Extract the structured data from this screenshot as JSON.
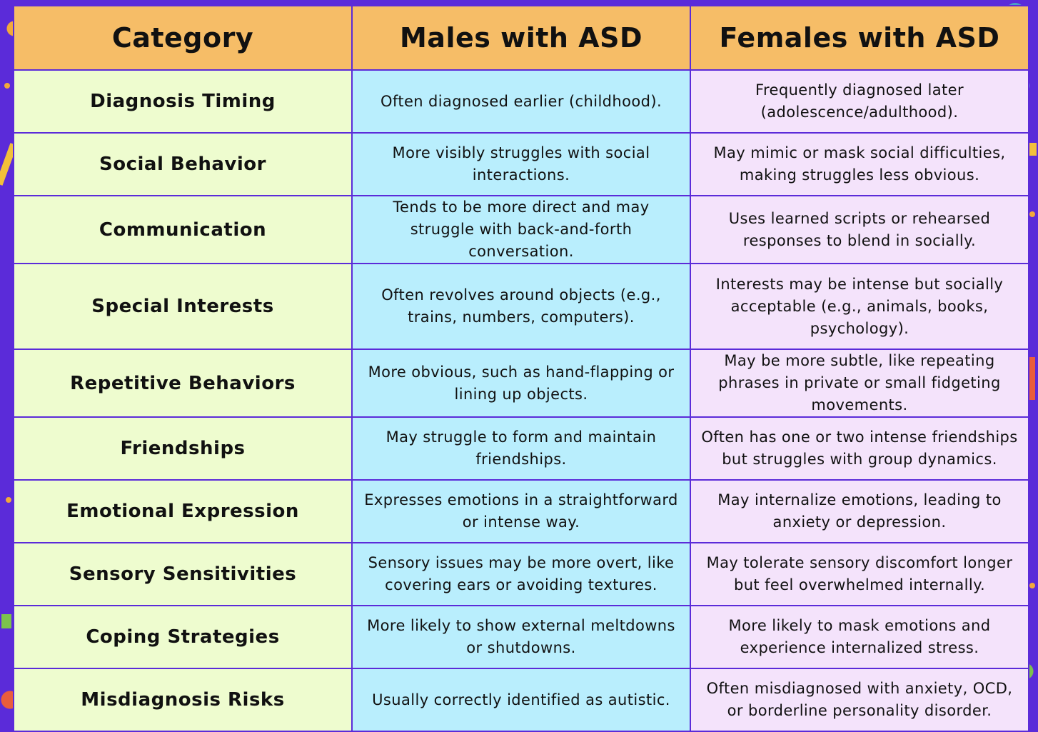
{
  "header": {
    "category": "Category",
    "males": "Males with ASD",
    "females": "Females with ASD"
  },
  "rows": [
    {
      "category": "Diagnosis Timing",
      "males": "Often diagnosed earlier (childhood).",
      "females": "Frequently diagnosed later (adolescence/adulthood)."
    },
    {
      "category": "Social Behavior",
      "males": "More visibly struggles with social interactions.",
      "females": "May mimic or mask social difficulties, making struggles less obvious."
    },
    {
      "category": "Communication",
      "males": "Tends to be more direct and may struggle with back-and-forth conversation.",
      "females": "Uses learned scripts or rehearsed responses to blend in socially."
    },
    {
      "category": "Special Interests",
      "males": "Often revolves around objects (e.g., trains, numbers, computers).",
      "females": "Interests may be intense but socially acceptable (e.g., animals, books, psychology)."
    },
    {
      "category": "Repetitive Behaviors",
      "males": "More obvious, such as hand-flapping or lining up objects.",
      "females": "May be more subtle, like repeating phrases in private or small fidgeting movements."
    },
    {
      "category": "Friendships",
      "males": "May struggle to form and maintain friendships.",
      "females": "Often has one or two intense friendships but struggles with group dynamics."
    },
    {
      "category": "Emotional Expression",
      "males": "Expresses emotions in a straightforward or intense way.",
      "females": "May internalize emotions, leading to anxiety or depression."
    },
    {
      "category": "Sensory Sensitivities",
      "males": "Sensory issues may be more overt, like covering ears or avoiding textures.",
      "females": "May tolerate sensory discomfort longer but feel overwhelmed internally."
    },
    {
      "category": "Coping Strategies",
      "males": "More likely to show external meltdowns or shutdowns.",
      "females": "More likely to mask emotions and experience internalized stress."
    },
    {
      "category": "Misdiagnosis Risks",
      "males": "Usually correctly identified as autistic.",
      "females": "Often misdiagnosed with anxiety, OCD, or borderline personality disorder."
    }
  ],
  "colors": {
    "border": "#5b2bd9",
    "header_bg": "#f6bd67",
    "category_bg": "#eefccf",
    "males_bg": "#b9eefd",
    "females_bg": "#f4e3fb"
  }
}
